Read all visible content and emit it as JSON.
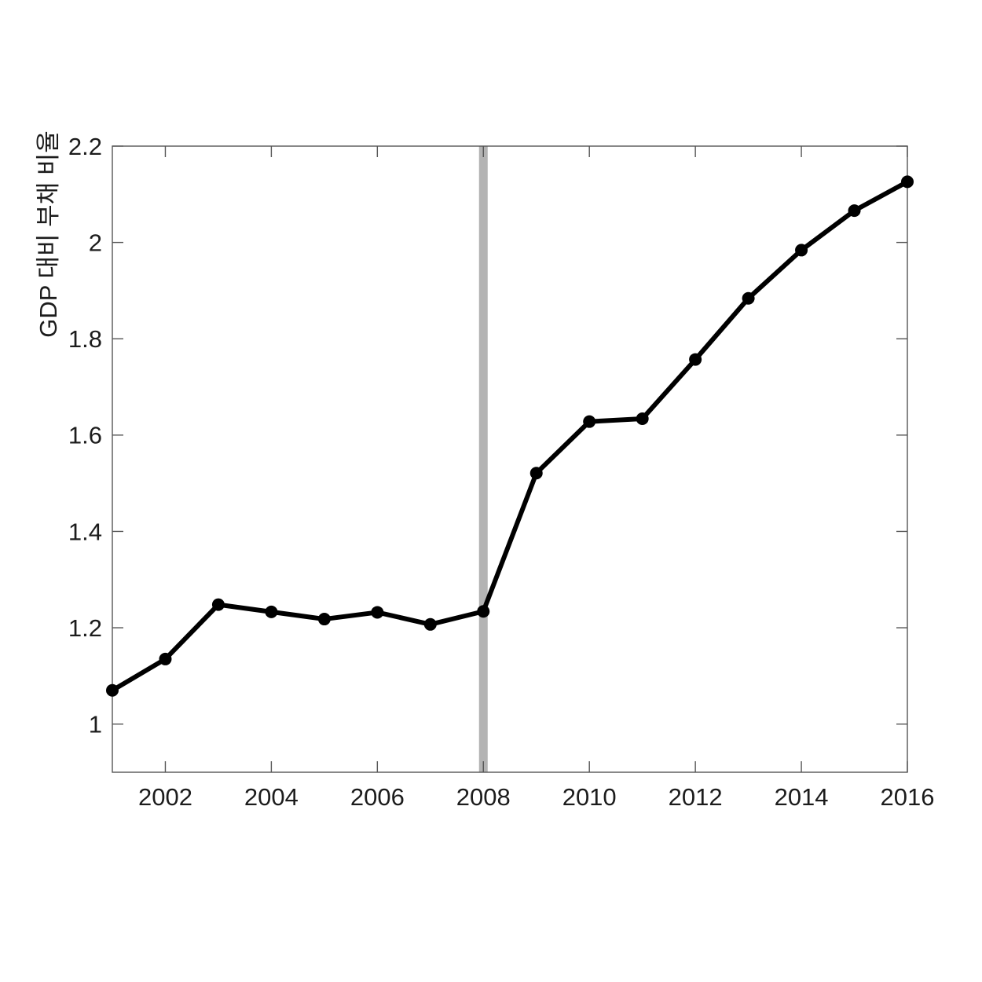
{
  "chart_data": {
    "type": "line",
    "title": "",
    "xlabel": "",
    "ylabel": "GDP 대비 부채 비율",
    "x": [
      2001,
      2002,
      2003,
      2004,
      2005,
      2006,
      2007,
      2008,
      2009,
      2010,
      2011,
      2012,
      2013,
      2014,
      2015,
      2016
    ],
    "series": [
      {
        "name": "GDP 대비 부채 비율",
        "values": [
          1.07,
          1.135,
          1.248,
          1.233,
          1.218,
          1.232,
          1.207,
          1.234,
          1.521,
          1.628,
          1.634,
          1.757,
          1.884,
          1.984,
          2.066,
          2.126
        ]
      }
    ],
    "xlim": [
      2001,
      2016
    ],
    "ylim": [
      0.9,
      2.2
    ],
    "x_ticks": [
      2002,
      2004,
      2006,
      2008,
      2010,
      2012,
      2014,
      2016
    ],
    "x_tick_labels": [
      "2002",
      "2004",
      "2006",
      "2008",
      "2010",
      "2012",
      "2014",
      "2016"
    ],
    "y_ticks": [
      1,
      1.2,
      1.4,
      1.6,
      1.8,
      2,
      2.2
    ],
    "y_tick_labels": [
      "1",
      "1.2",
      "1.4",
      "1.6",
      "1.8",
      "2",
      "2.2"
    ],
    "grid": false,
    "legend": null,
    "annotations": [
      {
        "type": "vline",
        "x": 2008,
        "label": ""
      }
    ],
    "marker": "circle"
  },
  "colors": {
    "line": "#000000",
    "marker_fill": "#000000",
    "vline_band": "#b3b3b3",
    "axis_line": "#555555",
    "tick_text": "#1c1c1c",
    "background": "#ffffff"
  }
}
